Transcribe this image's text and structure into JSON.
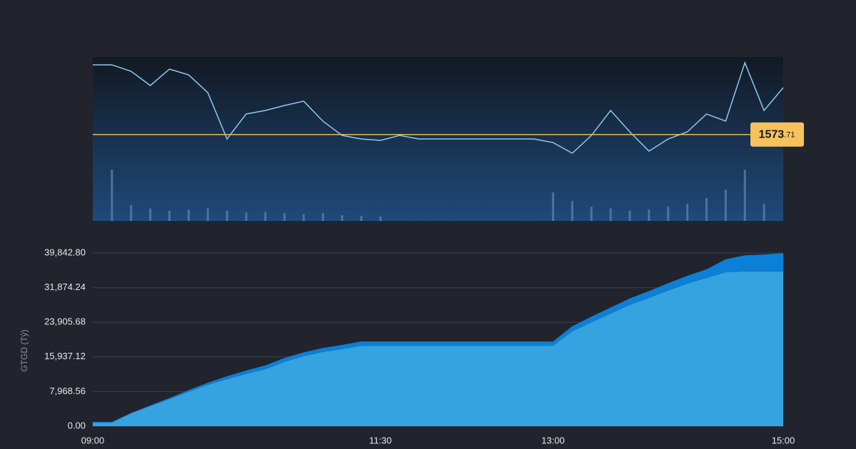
{
  "chart_data": [
    {
      "type": "line",
      "x": [
        "09:00",
        "09:10",
        "09:20",
        "09:30",
        "09:40",
        "09:50",
        "10:00",
        "10:10",
        "10:20",
        "10:30",
        "10:40",
        "10:50",
        "11:00",
        "11:10",
        "11:20",
        "11:30",
        "11:40",
        "11:50",
        "12:00",
        "12:10",
        "12:20",
        "12:30",
        "12:40",
        "12:50",
        "13:00",
        "13:10",
        "13:20",
        "13:30",
        "13:40",
        "13:50",
        "14:00",
        "14:10",
        "14:20",
        "14:30",
        "14:40",
        "14:50",
        "15:00"
      ],
      "xlim": [
        "09:00",
        "15:00"
      ],
      "ylim": [
        1560,
        1586
      ],
      "y2lim": [
        0,
        100
      ],
      "series": [
        {
          "color": "#8ec9f0",
          "values": [
            1584.76,
            1584.76,
            1583.74,
            1581.48,
            1584.08,
            1583.17,
            1580.35,
            1573.0,
            1576.96,
            1577.52,
            1578.31,
            1579.0,
            1575.83,
            1573.56,
            1573.0,
            1572.77,
            1573.56,
            1573.0,
            1573.0,
            1573.0,
            1573.0,
            1573.0,
            1573.0,
            1573.0,
            1572.43,
            1570.74,
            1573.56,
            1577.52,
            1574.13,
            1571.08,
            1573.0,
            1574.13,
            1576.96,
            1575.83,
            1585.09,
            1577.52,
            1581.14
          ]
        },
        {
          "type": "bar",
          "axis": "y2",
          "color": "#5a7fa8",
          "values": [
            0,
            90,
            28,
            22,
            18,
            20,
            22,
            18,
            15,
            16,
            14,
            12,
            14,
            10,
            9,
            8,
            0,
            0,
            0,
            0,
            0,
            0,
            0,
            0,
            50,
            35,
            25,
            22,
            18,
            20,
            25,
            30,
            40,
            55,
            90,
            30,
            0
          ]
        }
      ],
      "reference": {
        "value": 1573.71,
        "color": "#e8b85a",
        "label": [
          "1573",
          ".71"
        ]
      }
    },
    {
      "type": "area",
      "x": [
        "09:00",
        "09:10",
        "09:20",
        "09:30",
        "09:40",
        "09:50",
        "10:00",
        "10:10",
        "10:20",
        "10:30",
        "10:40",
        "10:50",
        "11:00",
        "11:10",
        "11:20",
        "11:30",
        "11:40",
        "11:50",
        "12:00",
        "12:10",
        "12:20",
        "12:30",
        "12:40",
        "12:50",
        "13:00",
        "13:10",
        "13:20",
        "13:30",
        "13:40",
        "13:50",
        "14:00",
        "14:10",
        "14:20",
        "14:30",
        "14:40",
        "14:50",
        "15:00"
      ],
      "xlim": [
        "09:00",
        "15:00"
      ],
      "xticks": [
        "09:00",
        "11:30",
        "13:00",
        "15:00"
      ],
      "ylim": [
        0,
        39842.8
      ],
      "yticks": [
        {
          "value": 0,
          "label": "0.00"
        },
        {
          "value": 7968.56,
          "label": "7,968.56"
        },
        {
          "value": 15937.12,
          "label": "15,937.12"
        },
        {
          "value": 23905.68,
          "label": "23,905.68"
        },
        {
          "value": 31874.24,
          "label": "31,874.24"
        },
        {
          "value": 39842.8,
          "label": "39,842.80"
        }
      ],
      "y_label": "GTGD (Tỷ)",
      "grid": true,
      "series": [
        {
          "color": "#35a3e0",
          "values": [
            800,
            800,
            2950,
            4600,
            6200,
            7900,
            9500,
            10800,
            12000,
            13100,
            14800,
            16100,
            17100,
            17700,
            18500,
            18500,
            18500,
            18500,
            18500,
            18500,
            18500,
            18500,
            18500,
            18500,
            18500,
            21800,
            23900,
            25900,
            27900,
            29500,
            31200,
            32800,
            34100,
            35400,
            35600,
            35600,
            35600
          ]
        },
        {
          "color": "#0b80d6",
          "values": [
            200,
            200,
            100,
            200,
            300,
            400,
            500,
            700,
            800,
            900,
            900,
            900,
            900,
            1000,
            1000,
            1000,
            1000,
            1000,
            1000,
            1000,
            1000,
            1000,
            1000,
            1000,
            1000,
            1200,
            1300,
            1400,
            1500,
            1600,
            1700,
            1800,
            2000,
            3000,
            3700,
            3900,
            4200
          ]
        }
      ]
    }
  ]
}
